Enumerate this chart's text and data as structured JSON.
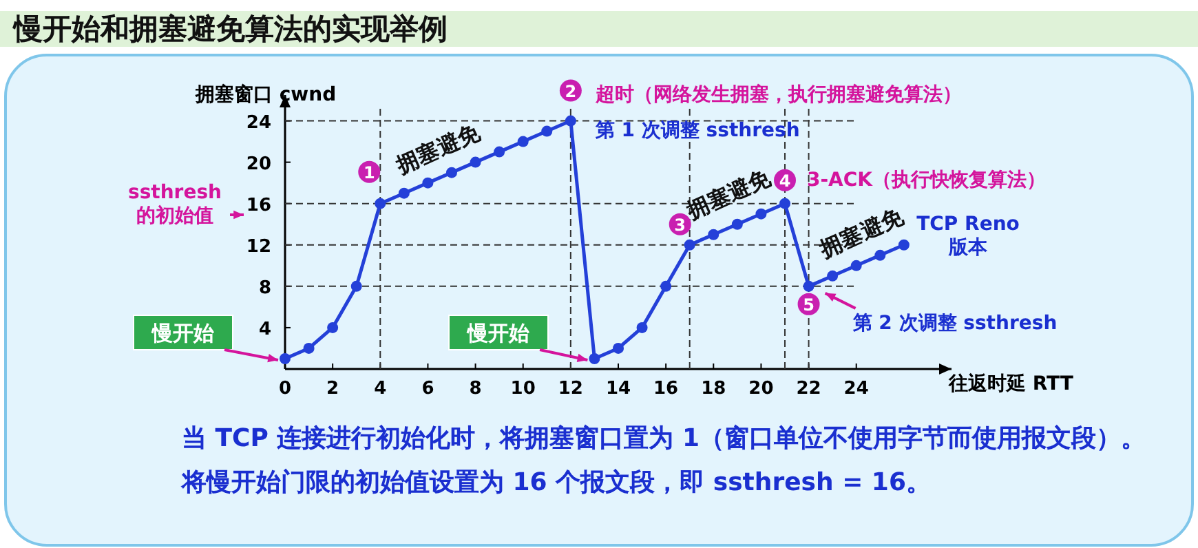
{
  "chart_data": {
    "type": "line",
    "title": "慢开始和拥塞避免算法的实现举例",
    "xlabel": "往返时延 RTT",
    "ylabel": "拥塞窗口  cwnd",
    "x": [
      0,
      1,
      2,
      3,
      4,
      5,
      6,
      7,
      8,
      9,
      10,
      11,
      12,
      13,
      14,
      15,
      16,
      17,
      18,
      19,
      20,
      21,
      22,
      23,
      24,
      25,
      26
    ],
    "series": [
      {
        "color": "#2440d8",
        "values": [
          1,
          2,
          4,
          8,
          16,
          17,
          18,
          19,
          20,
          21,
          22,
          23,
          24,
          1,
          2,
          4,
          8,
          12,
          13,
          14,
          15,
          16,
          8,
          9,
          10,
          11,
          12
        ]
      }
    ],
    "xlim": [
      0,
      28
    ],
    "ylim": [
      0,
      26.5
    ],
    "xticks": [
      0,
      2,
      4,
      6,
      8,
      10,
      12,
      14,
      16,
      18,
      20,
      22,
      24
    ],
    "yticks": [
      4,
      8,
      12,
      16,
      20,
      24
    ],
    "marker": "circle",
    "line_style": "solid",
    "grid": false,
    "ref_lines": [
      {
        "axis": "y",
        "value": 24,
        "line_style": "dashed"
      },
      {
        "axis": "y",
        "value": 16,
        "line_style": "dashed"
      },
      {
        "axis": "y",
        "value": 12,
        "line_style": "dashed"
      },
      {
        "axis": "y",
        "value": 8,
        "line_style": "dashed"
      },
      {
        "axis": "x",
        "value": 4,
        "line_style": "dashed"
      },
      {
        "axis": "x",
        "value": 12,
        "line_style": "dashed"
      },
      {
        "axis": "x",
        "value": 17,
        "line_style": "dashed"
      },
      {
        "axis": "x",
        "value": 21,
        "line_style": "dashed"
      },
      {
        "axis": "x",
        "value": 22,
        "line_style": "dashed"
      }
    ],
    "annotations": [
      {
        "text": "1",
        "x": 4,
        "y": 16
      },
      {
        "text": "2",
        "x": 12,
        "y": 24
      },
      {
        "text": "3",
        "x": 17,
        "y": 12
      },
      {
        "text": "4",
        "x": 21,
        "y": 16
      },
      {
        "text": "5",
        "x": 22,
        "y": 8
      },
      {
        "text": "拥塞避免",
        "x": 8,
        "y": 20
      },
      {
        "text": "拥塞避免",
        "x": 19,
        "y": 14
      },
      {
        "text": "拥塞避免",
        "x": 24,
        "y": 10
      },
      {
        "text": "超时（网络发生拥塞，执行拥塞避免算法）",
        "x": 12,
        "y": 24
      },
      {
        "text": "第 1 次调整 ssthresh",
        "x": 12,
        "y": 24
      },
      {
        "text": "3-ACK（执行快恢复算法）",
        "x": 21,
        "y": 16
      },
      "TCP Reno 版本",
      {
        "text": "第 2 次调整 ssthresh",
        "x": 22,
        "y": 8
      },
      "ssthresh 的初始值",
      {
        "text": "慢开始",
        "x": 0,
        "y": 1
      },
      {
        "text": "慢开始",
        "x": 13,
        "y": 1
      },
      "当 TCP 连接进行初始化时，将拥塞窗口置为 1（窗口单位不使用字节而使用报文段）。",
      "将慢开始门限的初始值设置为 16 个报文段，即 ssthresh = 16。"
    ]
  }
}
